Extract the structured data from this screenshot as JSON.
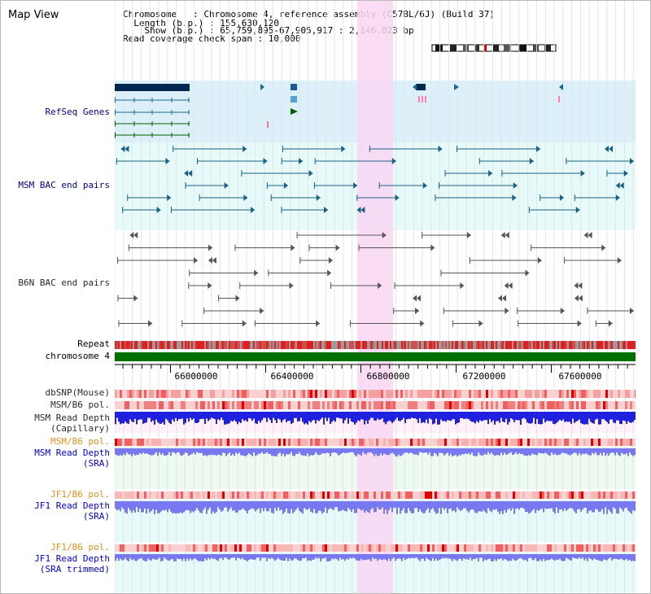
{
  "header": {
    "title": "Map View",
    "chromosome_line": "Chromosome   : Chromosome 4, reference assembly (C57BL/6J) (Build 37)",
    "length_line": "  Length (b.p.) : 155,630,120",
    "show_line": "    Show (b.p.) : 65,759,895-67,905,917 : 2,146,023 bp",
    "coverage_line": "Read coverage check span : 10,000"
  },
  "tracks": {
    "refseq": "RefSeq Genes",
    "msm_bac": "MSM BAC end pairs",
    "b6n_bac": "B6N BAC end pairs",
    "repeat": "Repeat",
    "chromosome": "chromosome 4",
    "dbsnp": "dbSNP(Mouse)",
    "msm_b6_pol": "MSM/B6 pol.",
    "msm_read_depth_cap_1": "MSM Read Depth",
    "msm_read_depth_cap_2": "(Capillary)",
    "msm_b6_pol_2": "MSM/B6 pol.",
    "msm_read_depth_sra_1": "MSM Read Depth",
    "msm_read_depth_sra_2": "(SRA)",
    "jf1_b6_pol": "JF1/B6 pol.",
    "jf1_read_depth_sra_1": "JF1 Read Depth",
    "jf1_read_depth_sra_2": "(SRA)",
    "jf1_b6_pol_2": "JF1/B6 pol.",
    "jf1_read_depth_trim_1": "JF1 Read Depth",
    "jf1_read_depth_trim_2": "(SRA trimmed)"
  },
  "axis": {
    "ticks": [
      "66000000",
      "66400000",
      "66800000",
      "67200000",
      "67600000"
    ]
  },
  "colors": {
    "highlight": "#f9d6f3",
    "refseq_bg": "#dcf0fa",
    "bac_bg": "#e6fafa",
    "chromosome": "#007000",
    "msm_bac": "#1a6080",
    "b6n_bac": "#555555",
    "depth_blue": "#2020e0",
    "depth_light": "#7878f0"
  },
  "icons": {
    "ideogram": "chromosome-ideogram-icon"
  }
}
